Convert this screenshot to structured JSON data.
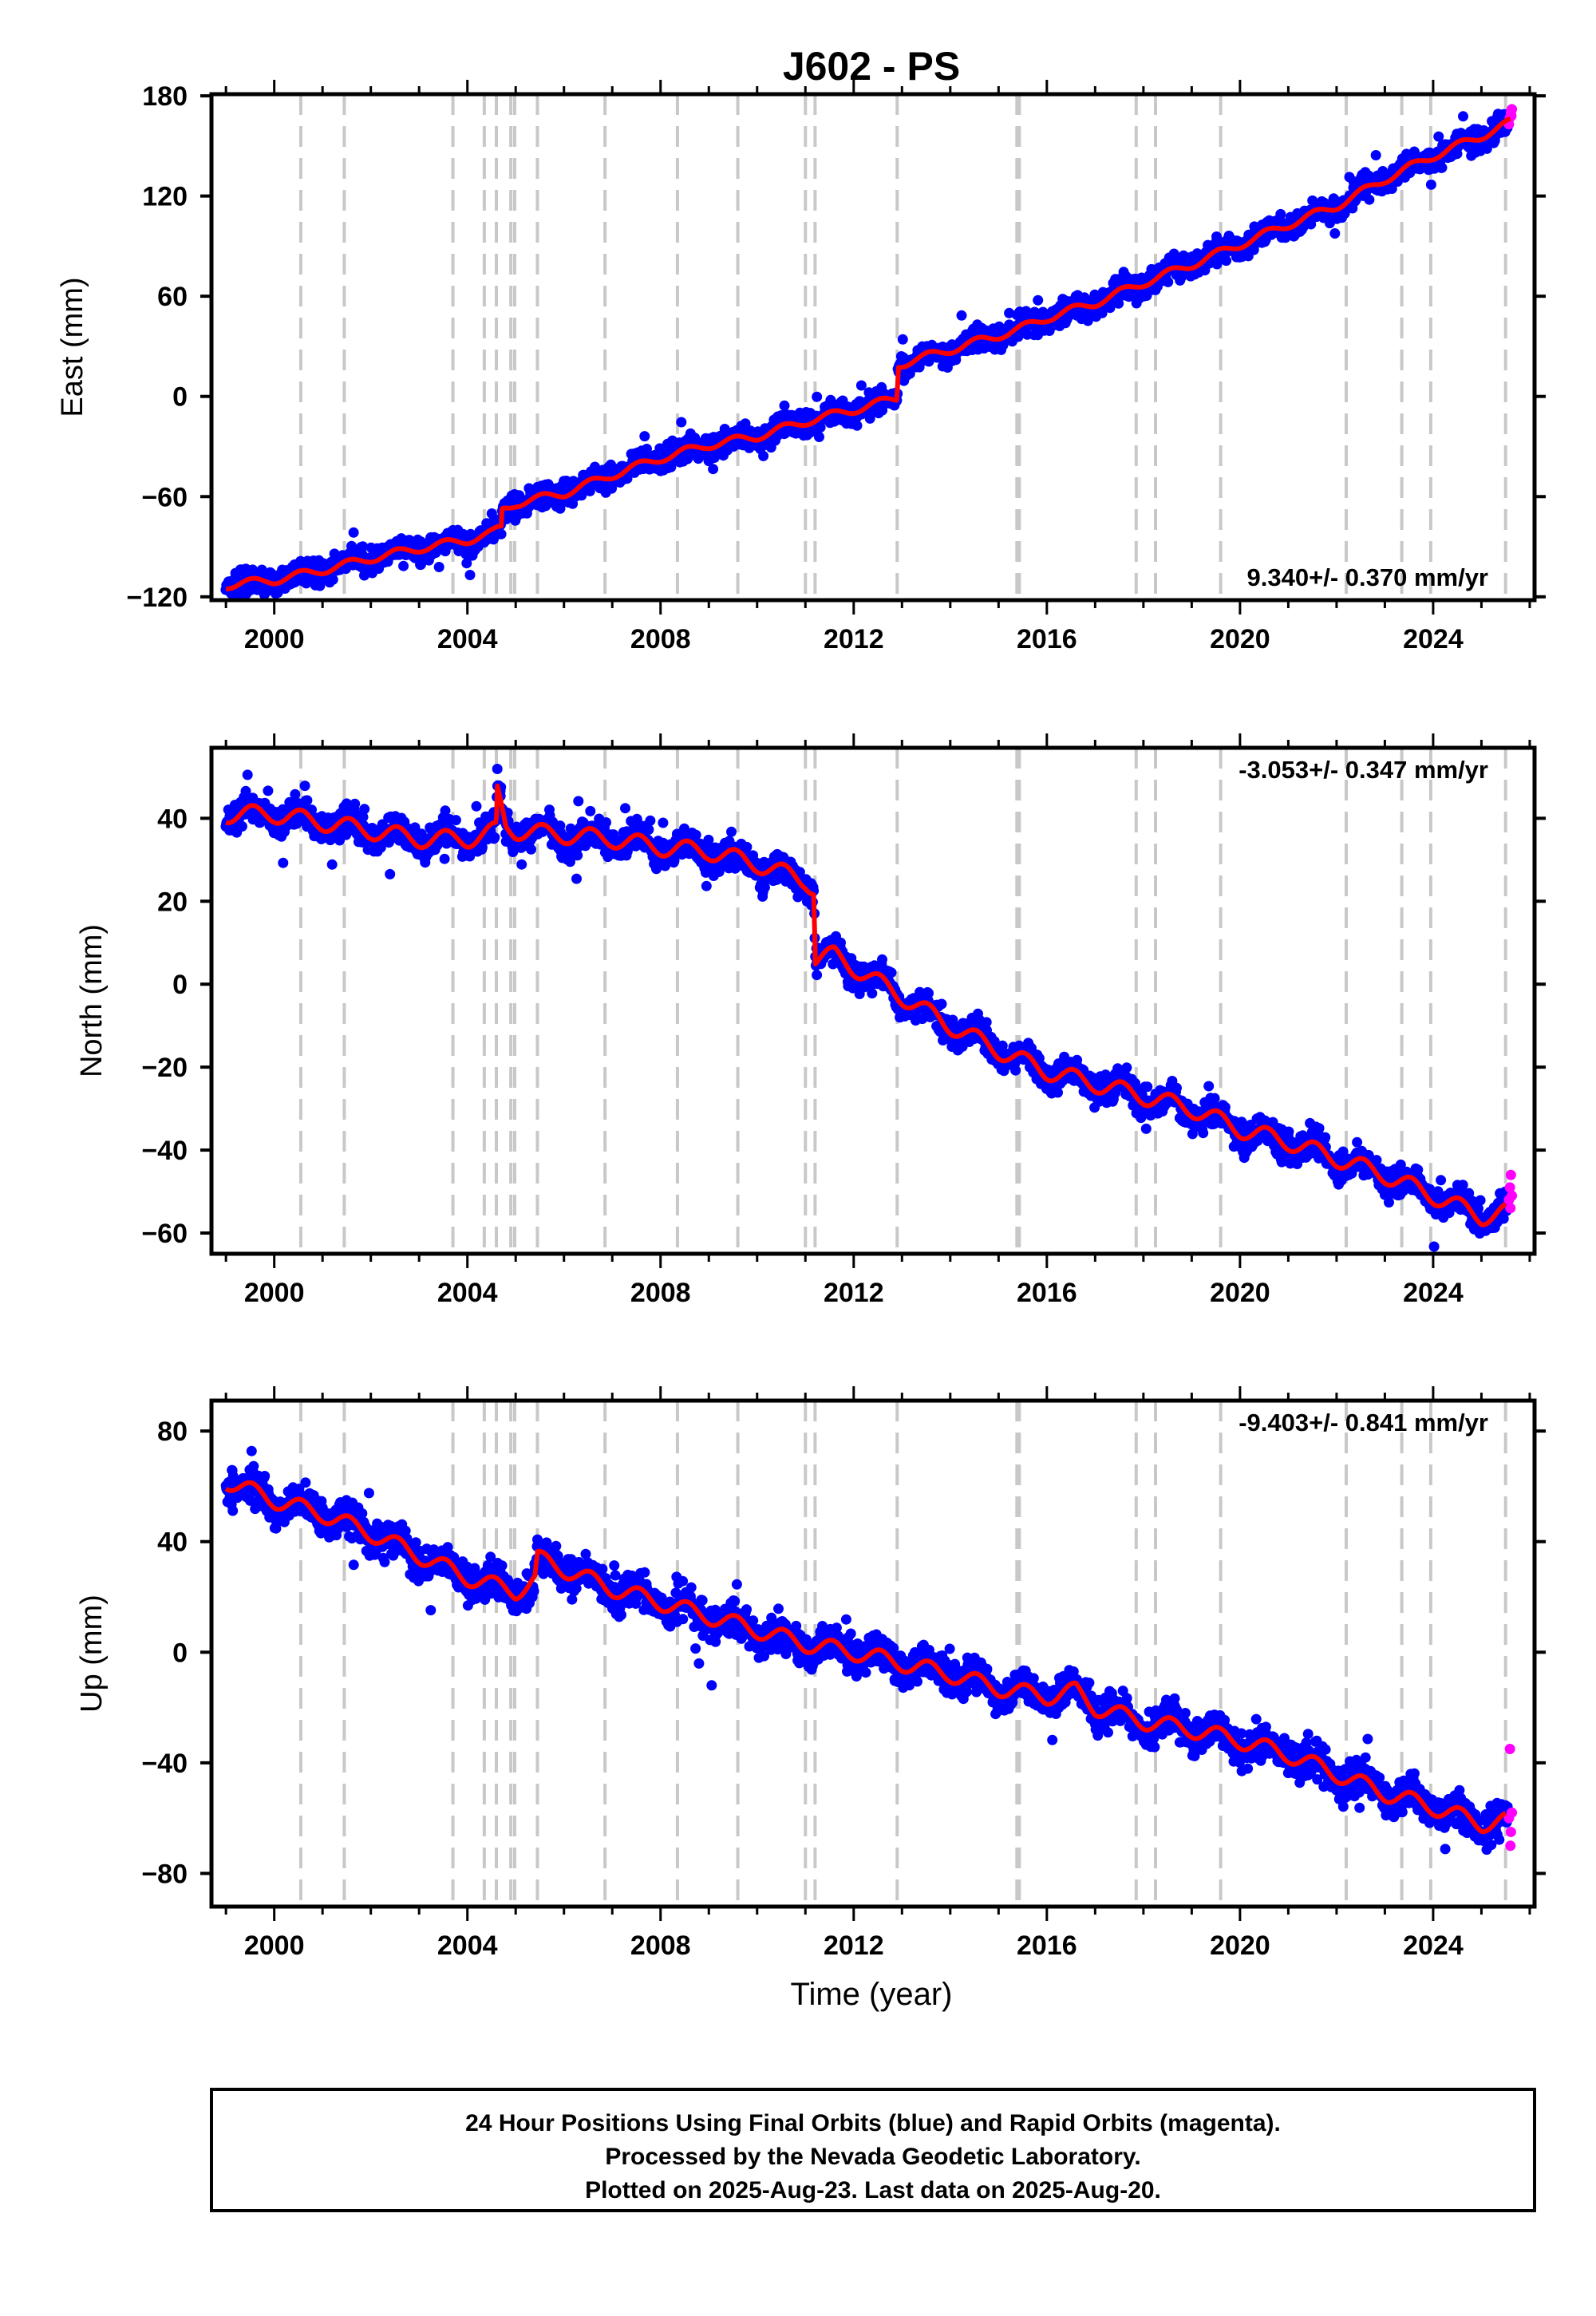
{
  "title": "J602 - PS",
  "x_axis_label": "Time (year)",
  "caption": [
    "24 Hour Positions Using Final Orbits (blue) and Rapid Orbits (magenta).",
    "Processed by the Nevada Geodetic Laboratory.",
    "Plotted on 2025-Aug-23. Last data on 2025-Aug-20."
  ],
  "colors": {
    "final_orbits": "#0000ff",
    "rapid_orbits": "#ff00ff",
    "model_fit": "#ff0000",
    "event_lines": "#c8c8c8"
  },
  "chart_data": [
    {
      "type": "scatter",
      "ylabel": "East (mm)",
      "xlim": [
        1998.7,
        2026.1
      ],
      "ylim": [
        -122,
        181
      ],
      "yticks": [
        -120,
        -60,
        0,
        60,
        120,
        180
      ],
      "xticks": [
        2000,
        2004,
        2008,
        2012,
        2016,
        2020,
        2024
      ],
      "rate_text": "9.340+/- 0.370 mm/yr",
      "rate_position": "bottom-right",
      "grid": false,
      "fit_line": {
        "name": "model",
        "points": [
          [
            1999.0,
            -113
          ],
          [
            2000.0,
            -110
          ],
          [
            2001.0,
            -104
          ],
          [
            2002.0,
            -97
          ],
          [
            2003.0,
            -91
          ],
          [
            2004.0,
            -86
          ],
          [
            2004.5,
            -82
          ],
          [
            2004.7,
            -79
          ],
          [
            2004.72,
            -68
          ],
          [
            2005.0,
            -64
          ],
          [
            2006.0,
            -58
          ],
          [
            2007.0,
            -47
          ],
          [
            2008.0,
            -37
          ],
          [
            2009.0,
            -29
          ],
          [
            2010.0,
            -24
          ],
          [
            2011.0,
            -15
          ],
          [
            2012.0,
            -8
          ],
          [
            2012.9,
            -1
          ],
          [
            2012.92,
            19
          ],
          [
            2014.0,
            28
          ],
          [
            2015.4,
            40
          ],
          [
            2016.0,
            47
          ],
          [
            2017.0,
            56
          ],
          [
            2018.0,
            68
          ],
          [
            2019.0,
            79
          ],
          [
            2020.0,
            91
          ],
          [
            2021.0,
            103
          ],
          [
            2022.0,
            114
          ],
          [
            2023.0,
            130
          ],
          [
            2024.0,
            144
          ],
          [
            2025.0,
            156
          ],
          [
            2025.6,
            164
          ]
        ]
      },
      "scatter": {
        "x_start": 1999.0,
        "x_end": 2025.55,
        "spread": 9,
        "seasonal_amplitude": 4
      },
      "rapid_points": [
        [
          2025.57,
          163
        ],
        [
          2025.59,
          167
        ],
        [
          2025.61,
          170
        ],
        [
          2025.63,
          172
        ],
        [
          2025.62,
          168
        ]
      ]
    },
    {
      "type": "scatter",
      "ylabel": "North (mm)",
      "xlim": [
        1998.7,
        2026.1
      ],
      "ylim": [
        -65,
        57
      ],
      "yticks": [
        -60,
        -40,
        -20,
        0,
        20,
        40
      ],
      "xticks": [
        2000,
        2004,
        2008,
        2012,
        2016,
        2020,
        2024
      ],
      "rate_text": "-3.053+/- 0.347 mm/yr",
      "rate_position": "top-right",
      "grid": false,
      "fit_line": {
        "name": "model",
        "points": [
          [
            1999.0,
            41
          ],
          [
            2000.0,
            41
          ],
          [
            2001.0,
            39
          ],
          [
            2002.0,
            37
          ],
          [
            2003.0,
            35
          ],
          [
            2004.0,
            35
          ],
          [
            2004.6,
            37
          ],
          [
            2004.62,
            46
          ],
          [
            2004.8,
            38
          ],
          [
            2005.0,
            37
          ],
          [
            2006.0,
            36
          ],
          [
            2007.0,
            35
          ],
          [
            2008.0,
            33
          ],
          [
            2009.0,
            32
          ],
          [
            2010.0,
            29
          ],
          [
            2011.0,
            25
          ],
          [
            2011.18,
            23
          ],
          [
            2011.2,
            6
          ],
          [
            2011.6,
            7
          ],
          [
            2012.0,
            4
          ],
          [
            2013.0,
            -3
          ],
          [
            2014.0,
            -10
          ],
          [
            2015.0,
            -16
          ],
          [
            2016.0,
            -21
          ],
          [
            2017.0,
            -24
          ],
          [
            2018.0,
            -27
          ],
          [
            2019.0,
            -30
          ],
          [
            2020.0,
            -35
          ],
          [
            2021.0,
            -38
          ],
          [
            2022.0,
            -42
          ],
          [
            2023.0,
            -46
          ],
          [
            2024.0,
            -51
          ],
          [
            2025.0,
            -56
          ],
          [
            2025.5,
            -55
          ]
        ]
      },
      "scatter": {
        "x_start": 1999.0,
        "x_end": 2025.55,
        "spread": 4.5,
        "seasonal_amplitude": 3.5
      },
      "rapid_points": [
        [
          2025.57,
          -52
        ],
        [
          2025.59,
          -49
        ],
        [
          2025.61,
          -46
        ],
        [
          2025.63,
          -51
        ],
        [
          2025.6,
          -54
        ]
      ]
    },
    {
      "type": "scatter",
      "ylabel": "Up (mm)",
      "xlim": [
        1998.7,
        2026.1
      ],
      "ylim": [
        -92,
        91
      ],
      "yticks": [
        -80,
        -40,
        0,
        40,
        80
      ],
      "xticks": [
        2000,
        2004,
        2008,
        2012,
        2016,
        2020,
        2024
      ],
      "rate_text": "-9.403+/- 0.841 mm/yr",
      "rate_position": "top-right",
      "grid": false,
      "fit_line": {
        "name": "model",
        "points": [
          [
            1999.0,
            62
          ],
          [
            2000.0,
            55
          ],
          [
            2001.0,
            50
          ],
          [
            2002.0,
            43
          ],
          [
            2003.0,
            35
          ],
          [
            2004.0,
            27
          ],
          [
            2005.0,
            22
          ],
          [
            2005.4,
            26
          ],
          [
            2005.45,
            34
          ],
          [
            2006.0,
            30
          ],
          [
            2007.0,
            23
          ],
          [
            2008.0,
            18
          ],
          [
            2009.0,
            13
          ],
          [
            2010.0,
            8
          ],
          [
            2011.0,
            3
          ],
          [
            2012.0,
            0
          ],
          [
            2013.0,
            -4
          ],
          [
            2014.0,
            -8
          ],
          [
            2015.0,
            -13
          ],
          [
            2016.0,
            -16
          ],
          [
            2016.6,
            -14
          ],
          [
            2017.0,
            -20
          ],
          [
            2018.0,
            -25
          ],
          [
            2019.0,
            -28
          ],
          [
            2020.0,
            -32
          ],
          [
            2021.0,
            -37
          ],
          [
            2022.0,
            -44
          ],
          [
            2023.0,
            -51
          ],
          [
            2024.0,
            -56
          ],
          [
            2025.0,
            -62
          ],
          [
            2025.5,
            -61
          ]
        ]
      },
      "scatter": {
        "x_start": 1999.0,
        "x_end": 2025.55,
        "spread": 8,
        "seasonal_amplitude": 5
      },
      "rapid_points": [
        [
          2025.57,
          -60
        ],
        [
          2025.59,
          -35
        ],
        [
          2025.61,
          -65
        ],
        [
          2025.63,
          -58
        ],
        [
          2025.6,
          -70
        ]
      ]
    }
  ],
  "event_lines_x": [
    2000.55,
    2001.45,
    2003.7,
    2004.35,
    2004.6,
    2004.9,
    2004.98,
    2005.45,
    2006.85,
    2008.35,
    2009.6,
    2011.0,
    2011.2,
    2012.9,
    2015.38,
    2015.43,
    2017.85,
    2018.25,
    2019.6,
    2022.2,
    2023.35,
    2023.95,
    2025.5
  ]
}
